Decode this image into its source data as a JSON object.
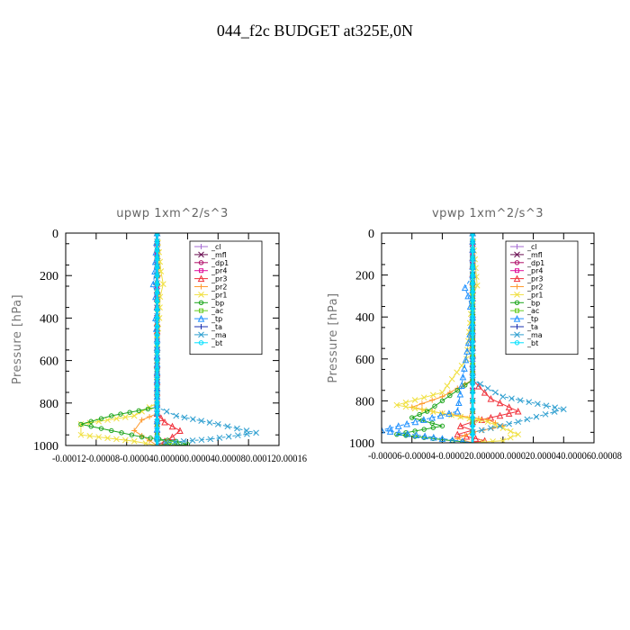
{
  "figure": {
    "title": "044_f2c  BUDGET at325E,0N"
  },
  "chart_data": [
    {
      "type": "line",
      "title": "upwp   1xm^2/s^3",
      "ylabel": "Pressure [hPa]",
      "ylim": [
        0,
        1000
      ],
      "y_inverted": true,
      "xlim": [
        -0.00012,
        0.00016
      ],
      "yticks": [
        "0",
        "200",
        "400",
        "600",
        "800",
        "1000"
      ],
      "xtick_text": "-0.00012-0.00008-0.000040.000000.000040.000080.000120.00016",
      "legend_position": "top-right",
      "grid": false,
      "series": [
        {
          "name": "_cl",
          "color": "#a66bd3",
          "x": [
            0,
            0,
            0,
            0,
            0,
            0,
            0,
            0,
            0,
            0,
            0
          ],
          "y": [
            0,
            100,
            200,
            300,
            400,
            500,
            600,
            700,
            800,
            900,
            1000
          ]
        },
        {
          "name": "_mfl",
          "color": "#6a0f52",
          "x": [
            0,
            0,
            0,
            0,
            0,
            0,
            0,
            0,
            0,
            0,
            0
          ],
          "y": [
            0,
            100,
            200,
            300,
            400,
            500,
            600,
            700,
            800,
            900,
            1000
          ]
        },
        {
          "name": "_dp1",
          "color": "#b0106a",
          "x": [
            0,
            0,
            0,
            0,
            0,
            0,
            0,
            0,
            0,
            0,
            0
          ],
          "y": [
            0,
            100,
            200,
            300,
            400,
            500,
            600,
            700,
            800,
            900,
            1000
          ]
        },
        {
          "name": "_pr4",
          "color": "#e0109b",
          "x": [
            0,
            0,
            0,
            0,
            0,
            0,
            0,
            0,
            0,
            0,
            0
          ],
          "y": [
            0,
            100,
            200,
            300,
            400,
            500,
            600,
            700,
            800,
            900,
            1000
          ]
        },
        {
          "name": "_pr3",
          "color": "#f0303a",
          "x": [
            0,
            0,
            0,
            0,
            0,
            5e-06,
            1e-05,
            2e-05,
            3e-05,
            2e-05,
            0
          ],
          "y": [
            0,
            500,
            700,
            800,
            850,
            870,
            890,
            910,
            930,
            960,
            1000
          ]
        },
        {
          "name": "_pr2",
          "color": "#ff9a2e",
          "x": [
            0,
            2e-06,
            0,
            2e-06,
            0,
            0,
            0,
            0,
            -2e-05,
            -3e-05,
            0
          ],
          "y": [
            0,
            200,
            250,
            300,
            400,
            600,
            800,
            850,
            880,
            930,
            1000
          ]
        },
        {
          "name": "_pr1",
          "color": "#f0e040",
          "x": [
            0,
            5e-06,
            8e-06,
            4e-06,
            3e-06,
            0,
            0,
            -3e-05,
            -0.0001,
            -0.0001,
            -3e-05,
            0
          ],
          "y": [
            0,
            180,
            240,
            300,
            400,
            500,
            800,
            860,
            900,
            950,
            980,
            1000
          ]
        },
        {
          "name": "_bp",
          "color": "#1ca51c",
          "x": [
            0,
            0,
            0,
            0,
            -6e-05,
            -0.0001,
            -6e-05,
            -2e-05,
            2.5e-05,
            4e-05,
            0
          ],
          "y": [
            0,
            400,
            600,
            820,
            860,
            900,
            930,
            960,
            980,
            995,
            1000
          ]
        },
        {
          "name": "_ac",
          "color": "#66cc22",
          "x": [
            0,
            0,
            0,
            0,
            0,
            0,
            0,
            2e-05,
            0
          ],
          "y": [
            0,
            400,
            600,
            800,
            900,
            950,
            970,
            990,
            1000
          ]
        },
        {
          "name": "_tp",
          "color": "#1e90ff",
          "x": [
            0,
            -3e-06,
            -5e-06,
            -2e-06,
            0,
            -2e-06,
            0,
            0
          ],
          "y": [
            0,
            180,
            240,
            300,
            350,
            400,
            500,
            1000
          ]
        },
        {
          "name": "_ta",
          "color": "#1a2fb0",
          "x": [
            0,
            0,
            0,
            0,
            0,
            0
          ],
          "y": [
            0,
            200,
            400,
            600,
            800,
            1000
          ]
        },
        {
          "name": "_ma",
          "color": "#2f9fd0",
          "x": [
            0,
            0,
            2.5e-05,
            8e-05,
            0.00013,
            7e-05,
            0,
            0
          ],
          "y": [
            0,
            820,
            860,
            900,
            940,
            970,
            990,
            1000
          ]
        },
        {
          "name": "_bt",
          "color": "#00e0ff",
          "x": [
            0,
            0,
            0,
            0,
            0,
            0
          ],
          "y": [
            0,
            200,
            400,
            600,
            800,
            1000
          ]
        }
      ]
    },
    {
      "type": "line",
      "title": "vpwp   1xm^2/s^3",
      "ylabel": "Pressure [hPa]",
      "ylim": [
        0,
        1000
      ],
      "y_inverted": true,
      "xlim": [
        -6e-05,
        8e-05
      ],
      "yticks": [
        "0",
        "200",
        "400",
        "600",
        "800",
        "1000"
      ],
      "xtick_text": "-0.00006-0.00004-0.000020.000000.000020.000040.000060.00008",
      "legend_position": "top-right",
      "grid": false,
      "series": [
        {
          "name": "_cl",
          "color": "#a66bd3",
          "x": [
            0,
            0,
            0,
            0,
            0,
            0,
            0,
            0,
            0,
            0,
            0
          ],
          "y": [
            0,
            100,
            200,
            300,
            400,
            500,
            600,
            700,
            800,
            900,
            1000
          ]
        },
        {
          "name": "_mfl",
          "color": "#6a0f52",
          "x": [
            0,
            0,
            0,
            0,
            0,
            0,
            0,
            0,
            0,
            0,
            0
          ],
          "y": [
            0,
            100,
            200,
            300,
            400,
            500,
            600,
            700,
            800,
            900,
            1000
          ]
        },
        {
          "name": "_dp1",
          "color": "#b0106a",
          "x": [
            0,
            0,
            0,
            0,
            0,
            0,
            0,
            0,
            0,
            0,
            0
          ],
          "y": [
            0,
            100,
            200,
            300,
            400,
            500,
            600,
            700,
            800,
            900,
            1000
          ]
        },
        {
          "name": "_pr4",
          "color": "#e0109b",
          "x": [
            0,
            0,
            0,
            0,
            0,
            0,
            0,
            0,
            0,
            0,
            0
          ],
          "y": [
            0,
            100,
            200,
            300,
            400,
            500,
            600,
            700,
            800,
            900,
            1000
          ]
        },
        {
          "name": "_pr3",
          "color": "#f0303a",
          "x": [
            0,
            0,
            1.2e-05,
            3e-05,
            1.2e-05,
            0,
            -8e-06,
            0,
            -1e-05,
            8e-06,
            0
          ],
          "y": [
            0,
            700,
            790,
            850,
            880,
            900,
            920,
            940,
            960,
            990,
            1000
          ]
        },
        {
          "name": "_pr2",
          "color": "#ff9a2e",
          "x": [
            0,
            0,
            -2e-05,
            -4e-05,
            -2e-05,
            1e-05,
            2e-05,
            0,
            -1e-05,
            0
          ],
          "y": [
            0,
            700,
            780,
            830,
            860,
            890,
            920,
            950,
            980,
            1000
          ]
        },
        {
          "name": "_pr1",
          "color": "#f0e040",
          "x": [
            0,
            3e-06,
            0,
            -4e-06,
            -2e-05,
            -5e-05,
            -2e-05,
            1e-05,
            3e-05,
            2e-05,
            0
          ],
          "y": [
            0,
            250,
            300,
            600,
            760,
            820,
            860,
            900,
            960,
            990,
            1000
          ]
        },
        {
          "name": "_bp",
          "color": "#1ca51c",
          "x": [
            0,
            0,
            -2e-05,
            -3e-05,
            -4e-05,
            -2e-05,
            -5e-05,
            -2e-05,
            0
          ],
          "y": [
            0,
            700,
            800,
            850,
            880,
            920,
            960,
            985,
            1000
          ]
        },
        {
          "name": "_ac",
          "color": "#66cc22",
          "x": [
            0,
            0,
            0,
            0,
            0
          ],
          "y": [
            0,
            500,
            800,
            900,
            1000
          ]
        },
        {
          "name": "_tp",
          "color": "#1e90ff",
          "x": [
            0,
            0,
            -5e-06,
            -3e-06,
            0,
            -1e-05,
            -6e-05,
            -2e-05,
            0
          ],
          "y": [
            0,
            200,
            260,
            300,
            400,
            850,
            940,
            980,
            1000
          ]
        },
        {
          "name": "_ta",
          "color": "#1a2fb0",
          "x": [
            0,
            0,
            0,
            0,
            0,
            0
          ],
          "y": [
            0,
            200,
            400,
            600,
            800,
            1000
          ]
        },
        {
          "name": "_ma",
          "color": "#2f9fd0",
          "x": [
            0,
            0,
            2e-05,
            6e-05,
            3e-05,
            0,
            0
          ],
          "y": [
            0,
            700,
            780,
            840,
            900,
            950,
            1000
          ]
        },
        {
          "name": "_bt",
          "color": "#00e0ff",
          "x": [
            0,
            0,
            0,
            0,
            0,
            0
          ],
          "y": [
            0,
            200,
            400,
            600,
            800,
            1000
          ]
        }
      ]
    }
  ]
}
